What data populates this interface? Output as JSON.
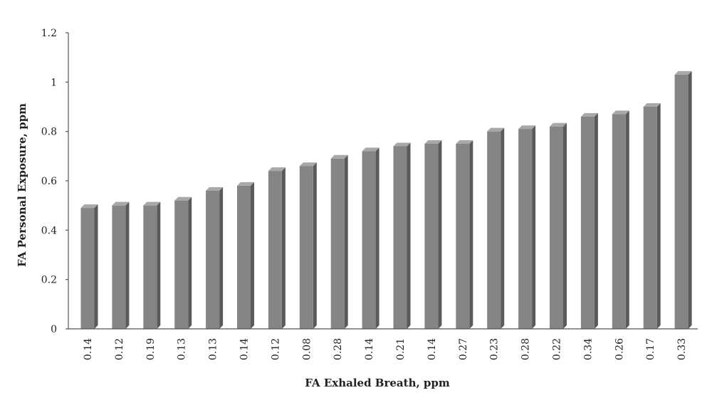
{
  "chart_data": {
    "type": "bar",
    "title": "",
    "xlabel": "FA Exhaled Breath, ppm",
    "ylabel": "FA Personal Exposure, ppm",
    "categories": [
      "0.14",
      "0.12",
      "0.19",
      "0.13",
      "0.13",
      "0.14",
      "0.12",
      "0.08",
      "0.28",
      "0.14",
      "0.21",
      "0.14",
      "0.27",
      "0.23",
      "0.28",
      "0.22",
      "0.34",
      "0.26",
      "0.17",
      "0.33"
    ],
    "values": [
      0.49,
      0.5,
      0.5,
      0.52,
      0.56,
      0.58,
      0.64,
      0.66,
      0.69,
      0.72,
      0.74,
      0.75,
      0.75,
      0.8,
      0.81,
      0.82,
      0.86,
      0.87,
      0.9,
      1.03
    ],
    "ylim": [
      0,
      1.2
    ],
    "yticks": [
      0,
      0.2,
      0.4,
      0.6,
      0.8,
      1,
      1.2
    ],
    "ytick_labels": [
      "0",
      "0.2",
      "0.4",
      "0.6",
      "0.8",
      "1",
      "1.2"
    ],
    "grid": false,
    "legend": "none",
    "colors": {
      "bar_front": "#858585",
      "bar_side": "#5a5a5a",
      "bar_top": "#a8a8a8",
      "axis": "#555555"
    }
  }
}
